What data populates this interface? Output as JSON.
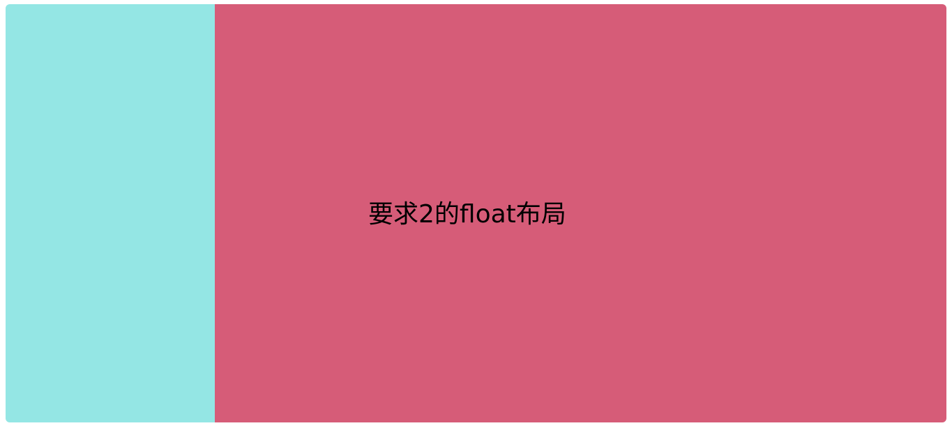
{
  "layout": {
    "left_pane_color": "#94e6e4",
    "right_pane_color": "#d65c78",
    "main_text": "要求2的float布局"
  }
}
